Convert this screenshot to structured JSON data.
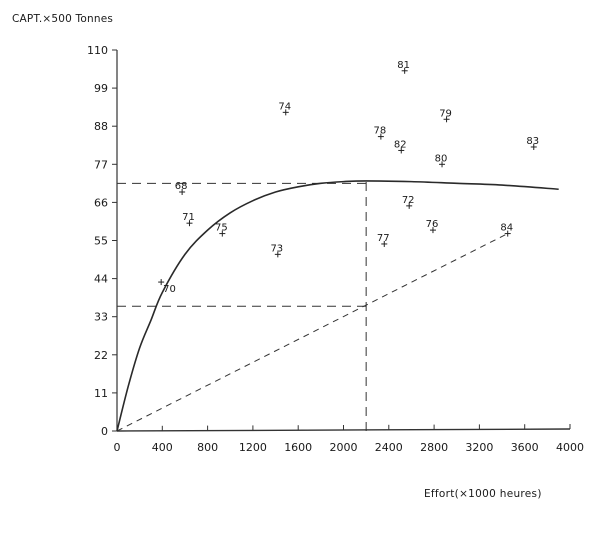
{
  "chart_data": {
    "type": "scatter",
    "title": "",
    "xlabel": "Effort(×1000 heures)",
    "ylabel": "CAPT.×500 Tonnes",
    "xlim": [
      0,
      4000
    ],
    "ylim": [
      0,
      110
    ],
    "x_ticks": [
      0,
      400,
      800,
      1200,
      1600,
      2000,
      2400,
      2800,
      3200,
      3600,
      4000
    ],
    "y_ticks": [
      0,
      11,
      22,
      33,
      44,
      55,
      66,
      77,
      88,
      99,
      110
    ],
    "grid": false,
    "legend": null,
    "points": [
      {
        "label": "68",
        "x": 575,
        "y": 69
      },
      {
        "label": "70",
        "x": 390,
        "y": 43
      },
      {
        "label": "71",
        "x": 640,
        "y": 60
      },
      {
        "label": "72",
        "x": 2580,
        "y": 65
      },
      {
        "label": "73",
        "x": 1420,
        "y": 51
      },
      {
        "label": "74",
        "x": 1490,
        "y": 92
      },
      {
        "label": "75",
        "x": 930,
        "y": 57
      },
      {
        "label": "76",
        "x": 2790,
        "y": 58
      },
      {
        "label": "77",
        "x": 2360,
        "y": 54
      },
      {
        "label": "78",
        "x": 2330,
        "y": 85
      },
      {
        "label": "79",
        "x": 2910,
        "y": 90
      },
      {
        "label": "80",
        "x": 2870,
        "y": 77
      },
      {
        "label": "81",
        "x": 2540,
        "y": 104
      },
      {
        "label": "82",
        "x": 2510,
        "y": 81
      },
      {
        "label": "83",
        "x": 3680,
        "y": 82
      },
      {
        "label": "84",
        "x": 3450,
        "y": 57
      }
    ],
    "fitted_curve": {
      "description": "Production curve rising steeply from origin to a plateau near 72 at effort ~2200, slightly declining to ~70 at 3900",
      "x": [
        0,
        100,
        200,
        300,
        400,
        600,
        800,
        1000,
        1200,
        1400,
        1600,
        1800,
        2000,
        2200,
        2600,
        3000,
        3400,
        3900
      ],
      "y": [
        0,
        13,
        24,
        32,
        40,
        51,
        58,
        63,
        66.5,
        69,
        70.5,
        71.5,
        72,
        72.2,
        72,
        71.5,
        71,
        69.8
      ]
    },
    "reference_lines": [
      {
        "type": "horizontal",
        "style": "dashed",
        "y": 71.5,
        "x_from": 0,
        "x_to": 2200,
        "meaning": "MSY level"
      },
      {
        "type": "vertical",
        "style": "dashed",
        "x": 2200,
        "y_from": 0,
        "y_to": 72.2,
        "meaning": "effort at MSY"
      },
      {
        "type": "horizontal",
        "style": "dashed",
        "y": 36,
        "x_from": 0,
        "x_to": 2200
      },
      {
        "type": "line",
        "style": "dashed",
        "from": [
          0,
          0
        ],
        "to": [
          3450,
          57
        ],
        "meaning": "line from origin through (2200, 36)"
      }
    ]
  },
  "axes": {
    "y_title": "CAPT.×500 Tonnes",
    "x_title": "Effort(×1000 heures)",
    "x_tick_labels": [
      "0",
      "400",
      "800",
      "1200",
      "1600",
      "2000",
      "2400",
      "2800",
      "3200",
      "3600",
      "4000"
    ],
    "y_tick_labels": [
      "0",
      "11",
      "22",
      "33",
      "44",
      "55",
      "66",
      "77",
      "88",
      "99",
      "110"
    ]
  }
}
